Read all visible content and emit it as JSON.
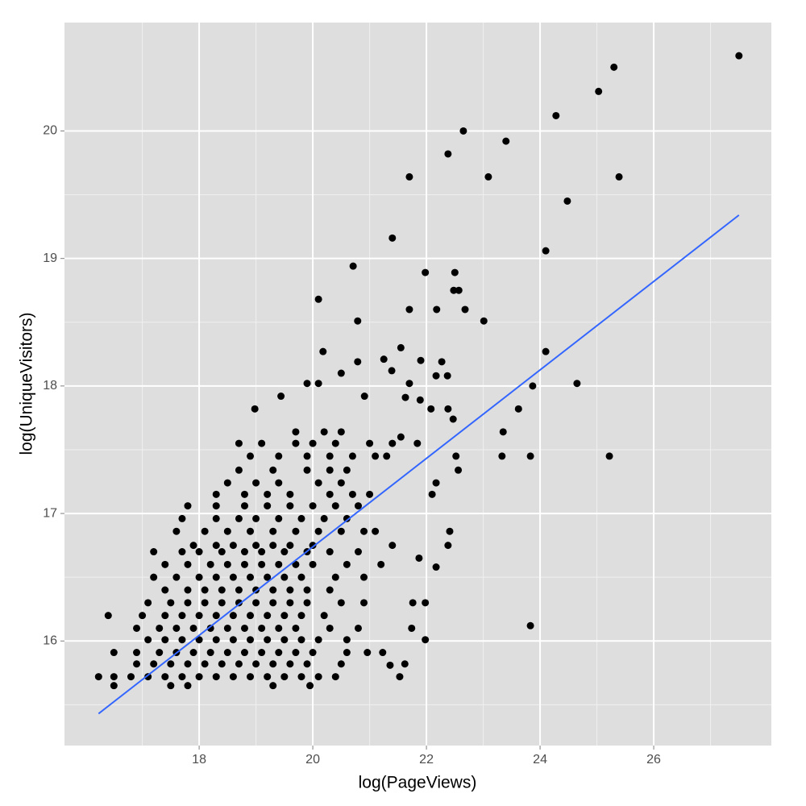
{
  "chart_data": {
    "type": "scatter",
    "xlabel": "log(PageViews)",
    "ylabel": "log(UniqueVisitors)",
    "xlim": [
      15.63,
      28.07
    ],
    "ylim": [
      15.18,
      20.85
    ],
    "xticks": [
      18,
      20,
      22,
      24,
      26
    ],
    "yticks": [
      16,
      17,
      18,
      19,
      20
    ],
    "xminor": [
      17,
      19,
      21,
      23,
      25,
      27
    ],
    "yminor": [
      15.5,
      16.5,
      17.5,
      18.5,
      19.5
    ],
    "grid": true,
    "color": "#000000",
    "x": [
      16.23,
      16.5,
      16.8,
      17.1,
      17.4,
      17.7,
      18.0,
      18.3,
      18.6,
      18.9,
      19.2,
      19.5,
      19.8,
      20.1,
      20.4,
      16.9,
      17.2,
      17.5,
      17.8,
      18.1,
      18.4,
      18.7,
      19.0,
      19.3,
      19.6,
      19.9,
      20.5,
      16.5,
      16.9,
      17.3,
      17.6,
      17.9,
      18.2,
      18.5,
      18.8,
      19.1,
      19.4,
      19.7,
      20.0,
      20.6,
      17.1,
      17.4,
      17.7,
      18.0,
      18.3,
      18.6,
      18.9,
      19.2,
      19.5,
      19.8,
      20.1,
      20.6,
      16.9,
      17.3,
      17.6,
      17.9,
      18.2,
      18.5,
      18.8,
      19.1,
      19.4,
      19.7,
      20.3,
      20.8,
      16.4,
      17.0,
      17.4,
      17.7,
      18.0,
      18.3,
      18.6,
      18.9,
      19.2,
      19.5,
      19.8,
      20.2,
      17.1,
      17.5,
      17.8,
      18.1,
      18.4,
      18.7,
      19.0,
      19.3,
      19.6,
      19.9,
      20.5,
      20.9,
      17.4,
      17.8,
      18.1,
      18.4,
      18.7,
      19.0,
      19.3,
      19.6,
      19.9,
      20.3,
      17.2,
      17.6,
      18.0,
      18.3,
      18.6,
      18.9,
      19.2,
      19.5,
      19.8,
      20.4,
      20.9,
      17.4,
      17.8,
      18.2,
      18.5,
      18.8,
      19.1,
      19.4,
      19.7,
      20.0,
      20.6,
      21.2,
      17.2,
      17.7,
      18.0,
      18.4,
      18.8,
      19.1,
      19.5,
      19.9,
      20.3,
      20.8,
      17.9,
      18.3,
      18.6,
      19.0,
      19.3,
      19.6,
      20.0,
      21.4,
      17.6,
      18.1,
      18.5,
      18.9,
      19.3,
      19.7,
      20.1,
      20.5,
      20.9,
      21.1,
      17.7,
      18.3,
      18.7,
      19.0,
      19.4,
      19.8,
      20.2,
      20.6,
      17.8,
      18.3,
      18.8,
      19.2,
      19.6,
      20.0,
      20.4,
      20.8,
      18.3,
      18.8,
      19.2,
      19.6,
      20.3,
      20.7,
      21.0,
      18.5,
      19.0,
      19.4,
      20.1,
      20.5,
      18.7,
      19.3,
      19.9,
      20.3,
      20.6,
      18.9,
      19.4,
      19.9,
      20.3,
      20.7,
      21.1,
      21.3,
      18.7,
      19.1,
      19.7,
      20.0,
      20.4,
      21.0,
      21.4,
      19.7,
      20.2,
      20.5,
      16.5,
      17.5,
      17.8,
      19.3,
      19.95,
      27.5,
      25.3,
      25.03,
      22.65,
      23.4,
      22.38,
      24.28,
      21.7,
      23.09,
      25.39,
      24.48,
      21.4,
      24.1,
      20.71,
      21.98,
      22.5,
      22.48,
      22.57,
      20.1,
      21.7,
      22.18,
      22.68,
      23.01,
      20.79,
      21.55,
      24.1,
      20.18,
      21.25,
      21.9,
      22.27,
      20.79,
      20.5,
      21.39,
      22.17,
      22.37,
      21.7,
      19.9,
      20.1,
      24.65,
      23.87,
      19.44,
      18.98,
      20.91,
      21.63,
      21.89,
      23.62,
      22.08,
      22.38,
      22.47,
      23.35,
      21.55,
      21.84,
      22.52,
      23.33,
      23.83,
      25.22,
      22.56,
      22.17,
      22.1,
      22.41,
      22.38,
      21.87,
      22.17,
      21.76,
      21.98,
      21.74,
      21.98,
      23.83,
      21.53,
      21.62,
      21.36,
      21.23,
      20.96
    ],
    "values": [
      15.72,
      15.72,
      15.72,
      15.72,
      15.72,
      15.72,
      15.72,
      15.72,
      15.72,
      15.72,
      15.72,
      15.72,
      15.72,
      15.72,
      15.72,
      15.82,
      15.82,
      15.82,
      15.82,
      15.82,
      15.82,
      15.82,
      15.82,
      15.82,
      15.82,
      15.82,
      15.82,
      15.91,
      15.91,
      15.91,
      15.91,
      15.91,
      15.91,
      15.91,
      15.91,
      15.91,
      15.91,
      15.91,
      15.91,
      15.91,
      16.01,
      16.01,
      16.01,
      16.01,
      16.01,
      16.01,
      16.01,
      16.01,
      16.01,
      16.01,
      16.01,
      16.01,
      16.1,
      16.1,
      16.1,
      16.1,
      16.1,
      16.1,
      16.1,
      16.1,
      16.1,
      16.1,
      16.1,
      16.1,
      16.2,
      16.2,
      16.2,
      16.2,
      16.2,
      16.2,
      16.2,
      16.2,
      16.2,
      16.2,
      16.2,
      16.2,
      16.3,
      16.3,
      16.3,
      16.3,
      16.3,
      16.3,
      16.3,
      16.3,
      16.3,
      16.3,
      16.3,
      16.3,
      16.4,
      16.4,
      16.4,
      16.4,
      16.4,
      16.4,
      16.4,
      16.4,
      16.4,
      16.4,
      16.5,
      16.5,
      16.5,
      16.5,
      16.5,
      16.5,
      16.5,
      16.5,
      16.5,
      16.5,
      16.5,
      16.6,
      16.6,
      16.6,
      16.6,
      16.6,
      16.6,
      16.6,
      16.6,
      16.6,
      16.6,
      16.6,
      16.7,
      16.7,
      16.7,
      16.7,
      16.7,
      16.7,
      16.7,
      16.7,
      16.7,
      16.7,
      16.75,
      16.75,
      16.75,
      16.75,
      16.75,
      16.75,
      16.75,
      16.75,
      16.86,
      16.86,
      16.86,
      16.86,
      16.86,
      16.86,
      16.86,
      16.86,
      16.86,
      16.86,
      16.96,
      16.96,
      16.96,
      16.96,
      16.96,
      16.96,
      16.96,
      16.96,
      17.06,
      17.06,
      17.06,
      17.06,
      17.06,
      17.06,
      17.06,
      17.06,
      17.15,
      17.15,
      17.15,
      17.15,
      17.15,
      17.15,
      17.15,
      17.24,
      17.24,
      17.24,
      17.24,
      17.24,
      17.34,
      17.34,
      17.34,
      17.34,
      17.34,
      17.45,
      17.45,
      17.45,
      17.45,
      17.45,
      17.45,
      17.45,
      17.55,
      17.55,
      17.55,
      17.55,
      17.55,
      17.55,
      17.55,
      17.64,
      17.64,
      17.64,
      15.65,
      15.65,
      15.65,
      15.65,
      15.65,
      20.59,
      20.5,
      20.31,
      20.0,
      19.92,
      19.82,
      20.12,
      19.64,
      19.64,
      19.64,
      19.45,
      19.16,
      19.06,
      18.94,
      18.89,
      18.89,
      18.75,
      18.75,
      18.68,
      18.6,
      18.6,
      18.6,
      18.51,
      18.51,
      18.3,
      18.27,
      18.27,
      18.21,
      18.2,
      18.19,
      18.19,
      18.1,
      18.12,
      18.08,
      18.08,
      18.02,
      18.02,
      18.02,
      18.02,
      18.0,
      17.92,
      17.82,
      17.92,
      17.91,
      17.89,
      17.82,
      17.82,
      17.82,
      17.74,
      17.64,
      17.6,
      17.55,
      17.45,
      17.45,
      17.45,
      17.45,
      17.34,
      17.24,
      17.15,
      16.86,
      16.75,
      16.65,
      16.58,
      16.3,
      16.3,
      16.1,
      16.01,
      16.12,
      15.72,
      15.82,
      15.81,
      15.91,
      15.91
    ],
    "fit": {
      "x": [
        16.23,
        27.5
      ],
      "values": [
        15.43,
        19.34
      ],
      "color": "#3366ff"
    }
  }
}
